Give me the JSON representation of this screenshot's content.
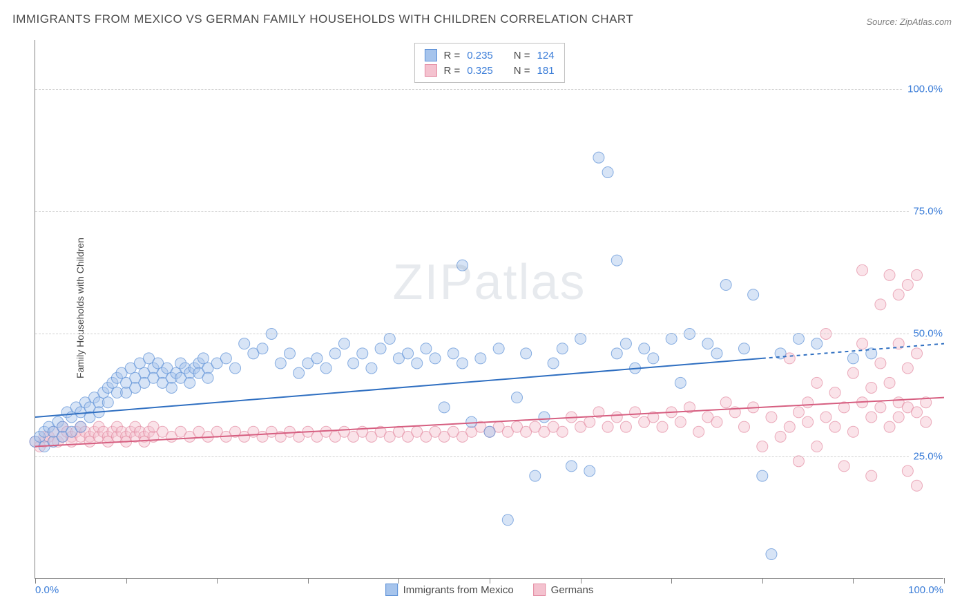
{
  "title": "IMMIGRANTS FROM MEXICO VS GERMAN FAMILY HOUSEHOLDS WITH CHILDREN CORRELATION CHART",
  "source": "Source: ZipAtlas.com",
  "ylabel": "Family Households with Children",
  "watermark": "ZIPatlas",
  "chart": {
    "type": "scatter",
    "background_color": "#ffffff",
    "grid_color": "#d0d0d0",
    "axis_color": "#808080",
    "tick_label_color": "#3b7dd8",
    "tick_label_fontsize": 15,
    "xlim": [
      0,
      100
    ],
    "ylim": [
      0,
      110
    ],
    "y_gridlines": [
      25,
      50,
      75,
      100
    ],
    "y_tick_labels": [
      "25.0%",
      "50.0%",
      "75.0%",
      "100.0%"
    ],
    "x_axis_start_label": "0.0%",
    "x_axis_end_label": "100.0%",
    "x_minor_ticks": [
      0,
      10,
      20,
      30,
      40,
      50,
      60,
      70,
      80,
      90,
      100
    ],
    "marker_radius": 8,
    "marker_opacity": 0.45,
    "marker_stroke_opacity": 0.7,
    "line_width": 2,
    "dash_pattern": "5,5",
    "series": [
      {
        "name": "Immigrants from Mexico",
        "fill_color": "#a6c4ec",
        "stroke_color": "#5a8fd6",
        "line_color": "#2f6fc1",
        "R": "0.235",
        "N": "124",
        "trend": {
          "x1": 0,
          "y1": 33,
          "x2": 80,
          "y2": 45,
          "x2_dash": 100,
          "y2_dash": 48
        },
        "points": [
          [
            0,
            28
          ],
          [
            0.5,
            29
          ],
          [
            1,
            30
          ],
          [
            1,
            27
          ],
          [
            1.5,
            31
          ],
          [
            2,
            30
          ],
          [
            2,
            28
          ],
          [
            2.5,
            32
          ],
          [
            3,
            31
          ],
          [
            3,
            29
          ],
          [
            3.5,
            34
          ],
          [
            4,
            33
          ],
          [
            4,
            30
          ],
          [
            4.5,
            35
          ],
          [
            5,
            31
          ],
          [
            5,
            34
          ],
          [
            5.5,
            36
          ],
          [
            6,
            35
          ],
          [
            6,
            33
          ],
          [
            6.5,
            37
          ],
          [
            7,
            36
          ],
          [
            7,
            34
          ],
          [
            7.5,
            38
          ],
          [
            8,
            39
          ],
          [
            8,
            36
          ],
          [
            8.5,
            40
          ],
          [
            9,
            38
          ],
          [
            9,
            41
          ],
          [
            9.5,
            42
          ],
          [
            10,
            40
          ],
          [
            10,
            38
          ],
          [
            10.5,
            43
          ],
          [
            11,
            41
          ],
          [
            11,
            39
          ],
          [
            11.5,
            44
          ],
          [
            12,
            42
          ],
          [
            12,
            40
          ],
          [
            12.5,
            45
          ],
          [
            13,
            43
          ],
          [
            13,
            41
          ],
          [
            13.5,
            44
          ],
          [
            14,
            42
          ],
          [
            14,
            40
          ],
          [
            14.5,
            43
          ],
          [
            15,
            41
          ],
          [
            15,
            39
          ],
          [
            15.5,
            42
          ],
          [
            16,
            44
          ],
          [
            16,
            41
          ],
          [
            16.5,
            43
          ],
          [
            17,
            42
          ],
          [
            17,
            40
          ],
          [
            17.5,
            43
          ],
          [
            18,
            44
          ],
          [
            18,
            42
          ],
          [
            18.5,
            45
          ],
          [
            19,
            43
          ],
          [
            19,
            41
          ],
          [
            20,
            44
          ],
          [
            21,
            45
          ],
          [
            22,
            43
          ],
          [
            23,
            48
          ],
          [
            24,
            46
          ],
          [
            25,
            47
          ],
          [
            26,
            50
          ],
          [
            27,
            44
          ],
          [
            28,
            46
          ],
          [
            29,
            42
          ],
          [
            30,
            44
          ],
          [
            31,
            45
          ],
          [
            32,
            43
          ],
          [
            33,
            46
          ],
          [
            34,
            48
          ],
          [
            35,
            44
          ],
          [
            36,
            46
          ],
          [
            37,
            43
          ],
          [
            38,
            47
          ],
          [
            39,
            49
          ],
          [
            40,
            45
          ],
          [
            41,
            46
          ],
          [
            42,
            44
          ],
          [
            43,
            47
          ],
          [
            44,
            45
          ],
          [
            45,
            35
          ],
          [
            46,
            46
          ],
          [
            47,
            64
          ],
          [
            47,
            44
          ],
          [
            48,
            32
          ],
          [
            49,
            45
          ],
          [
            50,
            30
          ],
          [
            51,
            47
          ],
          [
            52,
            12
          ],
          [
            53,
            37
          ],
          [
            54,
            46
          ],
          [
            55,
            21
          ],
          [
            56,
            33
          ],
          [
            57,
            44
          ],
          [
            58,
            47
          ],
          [
            59,
            23
          ],
          [
            60,
            49
          ],
          [
            61,
            22
          ],
          [
            62,
            86
          ],
          [
            63,
            83
          ],
          [
            64,
            65
          ],
          [
            64,
            46
          ],
          [
            65,
            48
          ],
          [
            66,
            43
          ],
          [
            67,
            47
          ],
          [
            68,
            45
          ],
          [
            70,
            49
          ],
          [
            71,
            40
          ],
          [
            72,
            50
          ],
          [
            74,
            48
          ],
          [
            75,
            46
          ],
          [
            76,
            60
          ],
          [
            78,
            47
          ],
          [
            79,
            58
          ],
          [
            80,
            21
          ],
          [
            81,
            5
          ],
          [
            82,
            46
          ],
          [
            84,
            49
          ],
          [
            86,
            48
          ],
          [
            90,
            45
          ],
          [
            92,
            46
          ]
        ]
      },
      {
        "name": "Germans",
        "fill_color": "#f4c2cf",
        "stroke_color": "#e38aa1",
        "line_color": "#d65e80",
        "R": "0.325",
        "N": "181",
        "trend": {
          "x1": 0,
          "y1": 27,
          "x2": 100,
          "y2": 37,
          "x2_dash": 100,
          "y2_dash": 37
        },
        "points": [
          [
            0,
            28
          ],
          [
            0.5,
            27
          ],
          [
            1,
            28
          ],
          [
            1,
            29
          ],
          [
            1.5,
            29
          ],
          [
            2,
            28
          ],
          [
            2,
            30
          ],
          [
            2.5,
            28
          ],
          [
            3,
            29
          ],
          [
            3,
            31
          ],
          [
            3.5,
            30
          ],
          [
            4,
            29
          ],
          [
            4,
            28
          ],
          [
            4.5,
            30
          ],
          [
            5,
            29
          ],
          [
            5,
            31
          ],
          [
            5.5,
            30
          ],
          [
            6,
            29
          ],
          [
            6,
            28
          ],
          [
            6.5,
            30
          ],
          [
            7,
            29
          ],
          [
            7,
            31
          ],
          [
            7.5,
            30
          ],
          [
            8,
            29
          ],
          [
            8,
            28
          ],
          [
            8.5,
            30
          ],
          [
            9,
            29
          ],
          [
            9,
            31
          ],
          [
            9.5,
            30
          ],
          [
            10,
            29
          ],
          [
            10,
            28
          ],
          [
            10.5,
            30
          ],
          [
            11,
            29
          ],
          [
            11,
            31
          ],
          [
            11.5,
            30
          ],
          [
            12,
            29
          ],
          [
            12,
            28
          ],
          [
            12.5,
            30
          ],
          [
            13,
            29
          ],
          [
            13,
            31
          ],
          [
            14,
            30
          ],
          [
            15,
            29
          ],
          [
            16,
            30
          ],
          [
            17,
            29
          ],
          [
            18,
            30
          ],
          [
            19,
            29
          ],
          [
            20,
            30
          ],
          [
            21,
            29
          ],
          [
            22,
            30
          ],
          [
            23,
            29
          ],
          [
            24,
            30
          ],
          [
            25,
            29
          ],
          [
            26,
            30
          ],
          [
            27,
            29
          ],
          [
            28,
            30
          ],
          [
            29,
            29
          ],
          [
            30,
            30
          ],
          [
            31,
            29
          ],
          [
            32,
            30
          ],
          [
            33,
            29
          ],
          [
            34,
            30
          ],
          [
            35,
            29
          ],
          [
            36,
            30
          ],
          [
            37,
            29
          ],
          [
            38,
            30
          ],
          [
            39,
            29
          ],
          [
            40,
            30
          ],
          [
            41,
            29
          ],
          [
            42,
            30
          ],
          [
            43,
            29
          ],
          [
            44,
            30
          ],
          [
            45,
            29
          ],
          [
            46,
            30
          ],
          [
            47,
            29
          ],
          [
            48,
            30
          ],
          [
            49,
            31
          ],
          [
            50,
            30
          ],
          [
            51,
            31
          ],
          [
            52,
            30
          ],
          [
            53,
            31
          ],
          [
            54,
            30
          ],
          [
            55,
            31
          ],
          [
            56,
            30
          ],
          [
            57,
            31
          ],
          [
            58,
            30
          ],
          [
            59,
            33
          ],
          [
            60,
            31
          ],
          [
            61,
            32
          ],
          [
            62,
            34
          ],
          [
            63,
            31
          ],
          [
            64,
            33
          ],
          [
            65,
            31
          ],
          [
            66,
            34
          ],
          [
            67,
            32
          ],
          [
            68,
            33
          ],
          [
            69,
            31
          ],
          [
            70,
            34
          ],
          [
            71,
            32
          ],
          [
            72,
            35
          ],
          [
            73,
            30
          ],
          [
            74,
            33
          ],
          [
            75,
            32
          ],
          [
            76,
            36
          ],
          [
            77,
            34
          ],
          [
            78,
            31
          ],
          [
            79,
            35
          ],
          [
            80,
            27
          ],
          [
            81,
            33
          ],
          [
            82,
            29
          ],
          [
            83,
            45
          ],
          [
            83,
            31
          ],
          [
            84,
            34
          ],
          [
            84,
            24
          ],
          [
            85,
            36
          ],
          [
            85,
            32
          ],
          [
            86,
            40
          ],
          [
            86,
            27
          ],
          [
            87,
            33
          ],
          [
            87,
            50
          ],
          [
            88,
            31
          ],
          [
            88,
            38
          ],
          [
            89,
            35
          ],
          [
            89,
            23
          ],
          [
            90,
            42
          ],
          [
            90,
            30
          ],
          [
            91,
            36
          ],
          [
            91,
            48
          ],
          [
            91,
            63
          ],
          [
            92,
            33
          ],
          [
            92,
            39
          ],
          [
            92,
            21
          ],
          [
            93,
            35
          ],
          [
            93,
            44
          ],
          [
            93,
            56
          ],
          [
            94,
            31
          ],
          [
            94,
            40
          ],
          [
            94,
            62
          ],
          [
            95,
            36
          ],
          [
            95,
            33
          ],
          [
            95,
            48
          ],
          [
            95,
            58
          ],
          [
            96,
            22
          ],
          [
            96,
            35
          ],
          [
            96,
            43
          ],
          [
            96,
            60
          ],
          [
            97,
            34
          ],
          [
            97,
            19
          ],
          [
            97,
            46
          ],
          [
            97,
            62
          ],
          [
            98,
            36
          ],
          [
            98,
            32
          ],
          [
            98,
            50
          ]
        ]
      }
    ]
  },
  "legend_top": {
    "r_label": "R =",
    "n_label": "N ="
  },
  "legend_bottom": {
    "items": [
      "Immigrants from Mexico",
      "Germans"
    ]
  }
}
